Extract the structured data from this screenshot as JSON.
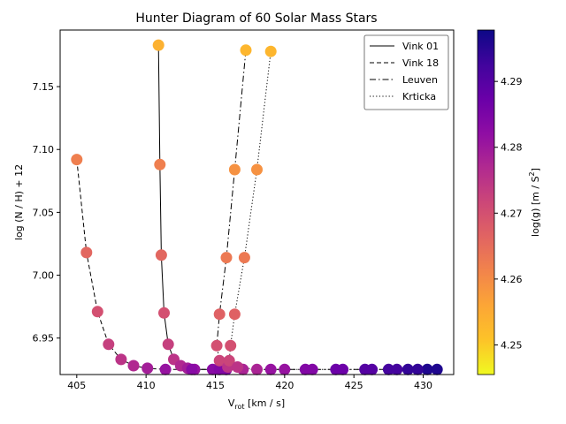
{
  "chart_data": {
    "type": "scatter",
    "title": "Hunter Diagram of 60 Solar Mass Stars",
    "xlabel_main": "V",
    "xlabel_sub": "rot",
    "xlabel_rest": " [km / s]",
    "ylabel": "log (N / H) + 12",
    "xlim": [
      403.8,
      432.2
    ],
    "ylim": [
      6.921,
      7.195
    ],
    "xticks": [
      405,
      410,
      415,
      420,
      425,
      430
    ],
    "yticks": [
      6.95,
      7.0,
      7.05,
      7.1,
      7.15
    ],
    "grid": false,
    "legend_position": "top-right",
    "colorbar": {
      "label_main": "log(g) [m / S",
      "label_sup": "2",
      "label_end": "]",
      "range": [
        4.2455,
        4.2978
      ],
      "ticks": [
        4.25,
        4.26,
        4.27,
        4.28,
        4.29
      ],
      "colormap": "plasma_r"
    },
    "series": [
      {
        "name": "Vink 01",
        "line_style": "solid",
        "points": [
          {
            "x": 410.9,
            "y": 7.183,
            "logg": 4.254
          },
          {
            "x": 411.0,
            "y": 7.088,
            "logg": 4.262
          },
          {
            "x": 411.1,
            "y": 7.016,
            "logg": 4.266
          },
          {
            "x": 411.3,
            "y": 6.97,
            "logg": 4.27
          },
          {
            "x": 411.6,
            "y": 6.945,
            "logg": 4.273
          },
          {
            "x": 412.0,
            "y": 6.933,
            "logg": 4.275
          },
          {
            "x": 412.5,
            "y": 6.928,
            "logg": 4.277
          },
          {
            "x": 413.0,
            "y": 6.926,
            "logg": 4.279
          },
          {
            "x": 413.5,
            "y": 6.925,
            "logg": 4.281
          },
          {
            "x": 414.8,
            "y": 6.925,
            "logg": 4.283
          },
          {
            "x": 415.8,
            "y": 6.925,
            "logg": 4.284
          }
        ]
      },
      {
        "name": "Vink 18",
        "line_style": "dashed",
        "points": [
          {
            "x": 405.0,
            "y": 7.092,
            "logg": 4.262
          },
          {
            "x": 405.7,
            "y": 7.018,
            "logg": 4.266
          },
          {
            "x": 406.5,
            "y": 6.971,
            "logg": 4.27
          },
          {
            "x": 407.3,
            "y": 6.945,
            "logg": 4.273
          },
          {
            "x": 408.2,
            "y": 6.933,
            "logg": 4.275
          },
          {
            "x": 409.1,
            "y": 6.928,
            "logg": 4.277
          },
          {
            "x": 410.1,
            "y": 6.926,
            "logg": 4.279
          },
          {
            "x": 411.4,
            "y": 6.925,
            "logg": 4.281
          },
          {
            "x": 413.3,
            "y": 6.925,
            "logg": 4.283
          },
          {
            "x": 415.3,
            "y": 6.925,
            "logg": 4.284
          }
        ]
      },
      {
        "name": "Leuven",
        "line_style": "dashdot",
        "points": [
          {
            "x": 417.2,
            "y": 7.179,
            "logg": 4.253
          },
          {
            "x": 416.4,
            "y": 7.084,
            "logg": 4.259
          },
          {
            "x": 415.8,
            "y": 7.014,
            "logg": 4.263
          },
          {
            "x": 415.3,
            "y": 6.969,
            "logg": 4.267
          },
          {
            "x": 415.1,
            "y": 6.944,
            "logg": 4.27
          },
          {
            "x": 415.3,
            "y": 6.932,
            "logg": 4.272
          },
          {
            "x": 415.9,
            "y": 6.927,
            "logg": 4.275
          },
          {
            "x": 417.0,
            "y": 6.925,
            "logg": 4.278
          },
          {
            "x": 419.0,
            "y": 6.925,
            "logg": 4.281
          },
          {
            "x": 421.5,
            "y": 6.925,
            "logg": 4.284
          },
          {
            "x": 423.7,
            "y": 6.925,
            "logg": 4.287
          },
          {
            "x": 425.8,
            "y": 6.925,
            "logg": 4.29
          },
          {
            "x": 427.5,
            "y": 6.925,
            "logg": 4.292
          },
          {
            "x": 428.9,
            "y": 6.925,
            "logg": 4.294
          },
          {
            "x": 430.3,
            "y": 6.925,
            "logg": 4.296
          }
        ]
      },
      {
        "name": "Krticka",
        "line_style": "dotted",
        "points": [
          {
            "x": 419.0,
            "y": 7.178,
            "logg": 4.253
          },
          {
            "x": 418.0,
            "y": 7.084,
            "logg": 4.259
          },
          {
            "x": 417.1,
            "y": 7.014,
            "logg": 4.263
          },
          {
            "x": 416.4,
            "y": 6.969,
            "logg": 4.267
          },
          {
            "x": 416.1,
            "y": 6.944,
            "logg": 4.27
          },
          {
            "x": 416.0,
            "y": 6.932,
            "logg": 4.272
          },
          {
            "x": 416.6,
            "y": 6.927,
            "logg": 4.275
          },
          {
            "x": 418.0,
            "y": 6.925,
            "logg": 4.278
          },
          {
            "x": 420.0,
            "y": 6.925,
            "logg": 4.281
          },
          {
            "x": 422.0,
            "y": 6.925,
            "logg": 4.284
          },
          {
            "x": 424.2,
            "y": 6.925,
            "logg": 4.287
          },
          {
            "x": 426.3,
            "y": 6.925,
            "logg": 4.29
          },
          {
            "x": 428.1,
            "y": 6.925,
            "logg": 4.292
          },
          {
            "x": 429.6,
            "y": 6.925,
            "logg": 4.294
          },
          {
            "x": 431.0,
            "y": 6.925,
            "logg": 4.296
          }
        ]
      }
    ]
  }
}
